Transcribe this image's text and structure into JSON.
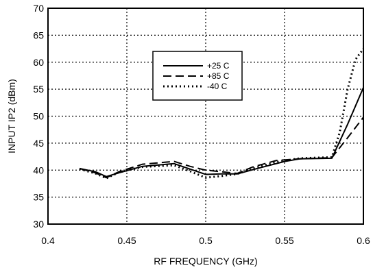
{
  "chart_data": {
    "type": "line",
    "title": "",
    "xlabel": "RF FREQUENCY (GHz)",
    "ylabel": "INPUT  IP2 (dBm)",
    "xlim": [
      0.4,
      0.6
    ],
    "ylim": [
      30,
      70
    ],
    "x_ticks": [
      "0.4",
      "0.45",
      "0.5",
      "0.55",
      "0.6"
    ],
    "y_ticks": [
      "30",
      "35",
      "40",
      "45",
      "50",
      "55",
      "60",
      "65",
      "70"
    ],
    "grid": true,
    "grid_style": "dotted",
    "legend_position": "upper-center",
    "series": [
      {
        "name": "+25 C",
        "style": "solid",
        "color": "#000000",
        "points": [
          [
            0.42,
            40.3
          ],
          [
            0.43,
            39.7
          ],
          [
            0.437,
            38.8
          ],
          [
            0.445,
            39.5
          ],
          [
            0.46,
            40.7
          ],
          [
            0.48,
            41.2
          ],
          [
            0.49,
            40.2
          ],
          [
            0.5,
            39.2
          ],
          [
            0.51,
            39.3
          ],
          [
            0.52,
            39.3
          ],
          [
            0.53,
            40.1
          ],
          [
            0.55,
            41.6
          ],
          [
            0.56,
            42.1
          ],
          [
            0.58,
            42.2
          ],
          [
            0.59,
            48.5
          ],
          [
            0.6,
            55.3
          ]
        ]
      },
      {
        "name": "+85 C",
        "style": "dashed",
        "color": "#000000",
        "points": [
          [
            0.42,
            40.3
          ],
          [
            0.43,
            39.5
          ],
          [
            0.437,
            38.6
          ],
          [
            0.445,
            39.7
          ],
          [
            0.46,
            41.1
          ],
          [
            0.48,
            41.6
          ],
          [
            0.49,
            40.7
          ],
          [
            0.5,
            40.0
          ],
          [
            0.51,
            39.7
          ],
          [
            0.52,
            39.4
          ],
          [
            0.53,
            40.6
          ],
          [
            0.545,
            41.8
          ],
          [
            0.56,
            42.1
          ],
          [
            0.58,
            42.3
          ],
          [
            0.59,
            46.0
          ],
          [
            0.6,
            49.8
          ]
        ]
      },
      {
        "name": "-40 C",
        "style": "dotted",
        "color": "#000000",
        "points": [
          [
            0.42,
            40.2
          ],
          [
            0.43,
            39.4
          ],
          [
            0.437,
            38.5
          ],
          [
            0.445,
            39.6
          ],
          [
            0.46,
            40.6
          ],
          [
            0.48,
            40.9
          ],
          [
            0.49,
            39.8
          ],
          [
            0.5,
            38.6
          ],
          [
            0.51,
            38.9
          ],
          [
            0.52,
            39.3
          ],
          [
            0.53,
            40.3
          ],
          [
            0.545,
            41.5
          ],
          [
            0.56,
            42.2
          ],
          [
            0.58,
            42.4
          ],
          [
            0.585,
            47.0
          ],
          [
            0.59,
            55.0
          ],
          [
            0.595,
            60.5
          ],
          [
            0.6,
            62.5
          ]
        ]
      }
    ]
  }
}
